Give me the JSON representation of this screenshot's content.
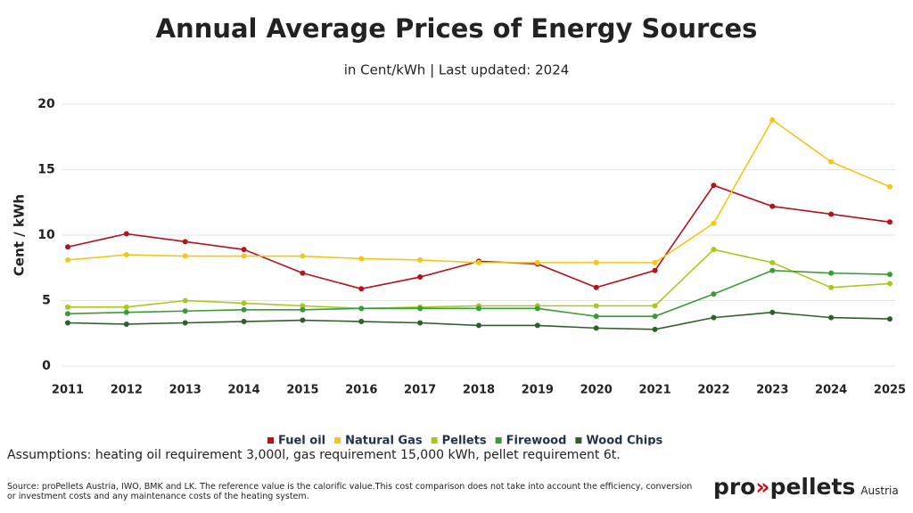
{
  "chart_data": {
    "type": "line",
    "title": "Annual Average Prices of Energy Sources",
    "subtitle": "in Cent/kWh | Last updated: 2024",
    "y_label": "Cent / kWh",
    "categories": [
      "2011",
      "2012",
      "2013",
      "2014",
      "2015",
      "2016",
      "2017",
      "2018",
      "2019",
      "2020",
      "2021",
      "2022",
      "2023",
      "2024",
      "2025"
    ],
    "ylim": [
      0,
      20
    ],
    "yticks": [
      0,
      5,
      10,
      15,
      20
    ],
    "grid": true,
    "legend": "bottom",
    "series": [
      {
        "name": "Fuel oil",
        "color": "#b5121b",
        "values": [
          9.1,
          10.1,
          9.5,
          8.9,
          7.1,
          5.9,
          6.8,
          8.0,
          7.8,
          6.0,
          7.3,
          13.8,
          12.2,
          11.6,
          11.0
        ]
      },
      {
        "name": "Natural Gas",
        "color": "#f5c518",
        "values": [
          8.1,
          8.5,
          8.4,
          8.4,
          8.4,
          8.2,
          8.1,
          7.9,
          7.9,
          7.9,
          7.9,
          10.9,
          18.8,
          15.6,
          13.7
        ]
      },
      {
        "name": "Pellets",
        "color": "#a8c81f",
        "values": [
          4.5,
          4.5,
          5.0,
          4.8,
          4.6,
          4.4,
          4.5,
          4.6,
          4.6,
          4.6,
          4.6,
          8.9,
          7.9,
          6.0,
          6.3
        ]
      },
      {
        "name": "Firewood",
        "color": "#3a9a38",
        "values": [
          4.0,
          4.1,
          4.2,
          4.3,
          4.3,
          4.4,
          4.4,
          4.4,
          4.4,
          3.8,
          3.8,
          5.5,
          7.3,
          7.1,
          7.0
        ]
      },
      {
        "name": "Wood Chips",
        "color": "#2f5f2a",
        "values": [
          3.3,
          3.2,
          3.3,
          3.4,
          3.5,
          3.4,
          3.3,
          3.1,
          3.1,
          2.9,
          2.8,
          3.7,
          4.1,
          3.7,
          3.6
        ]
      }
    ]
  },
  "footer": {
    "assumptions": "Assumptions: heating oil requirement 3,000l, gas requirement 15,000 kWh, pellet requirement 6t.",
    "source": "Source: proPellets Austria, IWO, BMK and LK. The reference value is the calorific value.This cost comparison does not take into account the efficiency, conversion or investment costs and any maintenance costs of the heating system."
  },
  "logo": {
    "pro": "pro",
    "arrow": "»",
    "pellets": "pellets",
    "region": "Austria"
  }
}
